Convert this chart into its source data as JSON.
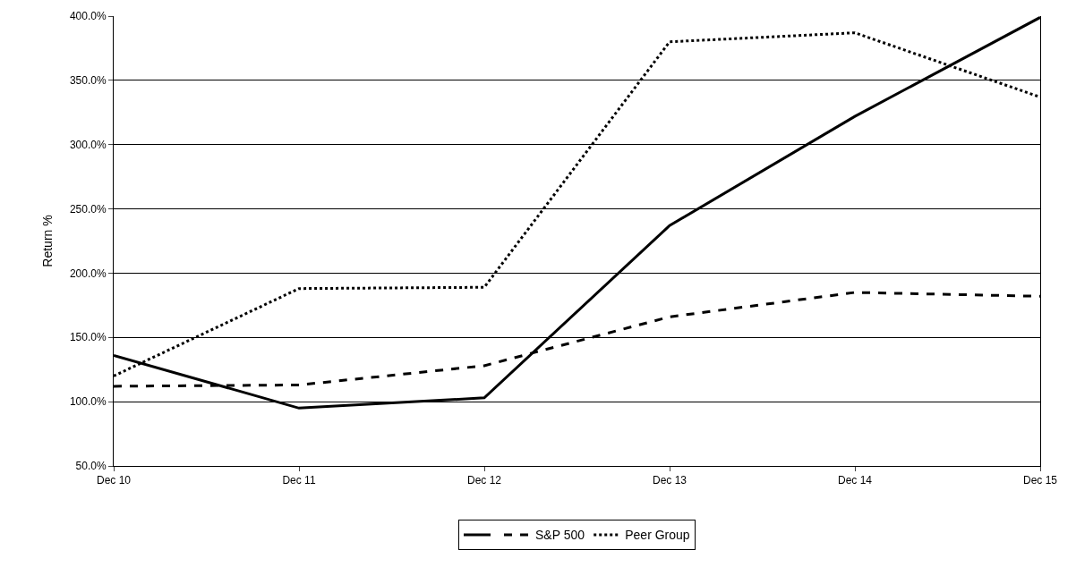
{
  "chart_data": {
    "type": "line",
    "ylabel": "Return %",
    "categories": [
      "Dec 10",
      "Dec 11",
      "Dec 12",
      "Dec 13",
      "Dec 14",
      "Dec 15"
    ],
    "series": [
      {
        "color": "#000000",
        "line_style": "solid",
        "values": [
          136,
          95,
          103,
          237,
          322,
          399
        ]
      },
      {
        "name": "S&P 500",
        "color": "#000000",
        "line_style": "dashed",
        "values": [
          112,
          113,
          128,
          166,
          185,
          182
        ]
      },
      {
        "name": "Peer Group",
        "color": "#000000",
        "line_style": "dotted",
        "values": [
          120,
          188,
          189,
          380,
          387,
          337
        ]
      }
    ],
    "ylim": [
      50,
      400
    ],
    "yticks": [
      {
        "value": 50,
        "label": "50.0%"
      },
      {
        "value": 100,
        "label": "100.0%"
      },
      {
        "value": 150,
        "label": "150.0%"
      },
      {
        "value": 200,
        "label": "200.0%"
      },
      {
        "value": 250,
        "label": "250.0%"
      },
      {
        "value": 300,
        "label": "300.0%"
      },
      {
        "value": 350,
        "label": "350.0%"
      },
      {
        "value": 400,
        "label": "400.0%"
      }
    ],
    "grid": "y",
    "legend": "bottom",
    "marker": "none"
  }
}
